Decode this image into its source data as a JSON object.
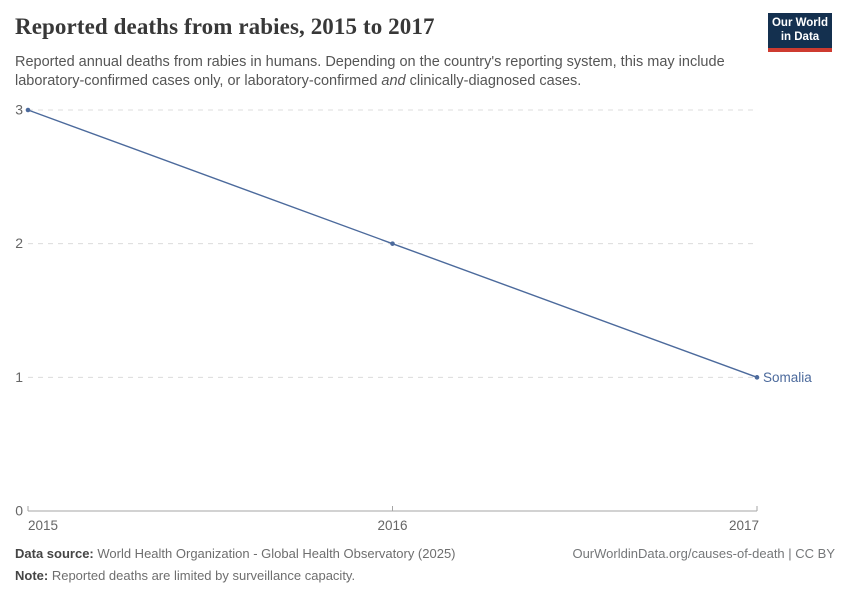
{
  "header": {
    "title": "Reported deaths from rabies, 2015 to 2017",
    "subtitle_part1": "Reported annual deaths from rabies in humans. Depending on the country's reporting system, this may include laboratory-confirmed cases only, or laboratory-confirmed ",
    "subtitle_italic": "and",
    "subtitle_part2": " clinically-diagnosed cases."
  },
  "logo": {
    "line1": "Our World",
    "line2": "in Data",
    "bg_color": "#14304f",
    "accent_color": "#ce3b30"
  },
  "chart_data": {
    "type": "line",
    "title": "Reported deaths from rabies, 2015 to 2017",
    "x": [
      2015,
      2016,
      2017
    ],
    "x_tick_labels": [
      "2015",
      "2016",
      "2017"
    ],
    "y_ticks": [
      0,
      1,
      2,
      3
    ],
    "xlim": [
      2015,
      2017
    ],
    "ylim": [
      0,
      3
    ],
    "grid": "horizontal-dashed",
    "legend_position": "end-of-line-label",
    "series": [
      {
        "name": "Somalia",
        "values": [
          3,
          2,
          1
        ],
        "color": "#4c6a9c"
      }
    ],
    "colors": {
      "gridline": "#dcdcdc",
      "axis": "#a5a5a5",
      "tick_label": "#666666"
    }
  },
  "footer": {
    "source_label": "Data source:",
    "source_text": " World Health Organization - Global Health Observatory (2025)",
    "note_label": "Note:",
    "note_text": " Reported deaths are limited by surveillance capacity.",
    "attribution": "OurWorldinData.org/causes-of-death | CC BY"
  }
}
